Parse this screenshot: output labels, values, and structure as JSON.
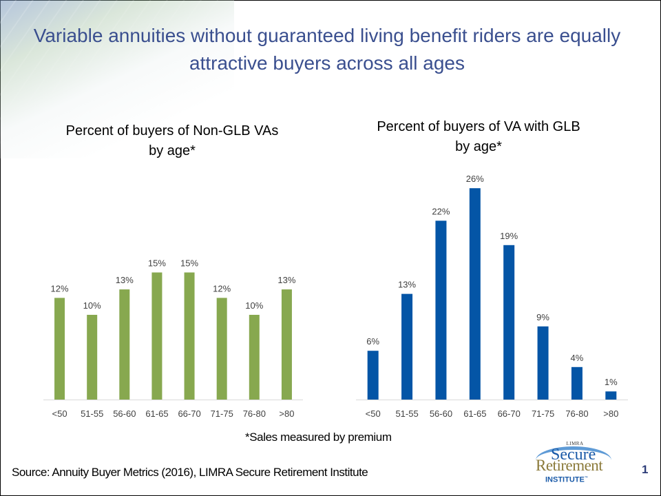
{
  "slide": {
    "title": "Variable annuities without guaranteed living benefit riders are equally attractive buyers across all ages",
    "footnote": "*Sales measured by premium",
    "source": "Source: Annuity Buyer Metrics (2016), LIMRA Secure Retirement Institute",
    "page_number": "1",
    "logo": {
      "top_text": "LIMRA",
      "line1": "Secure",
      "line2": "Retirement",
      "line3": "INSTITUTE",
      "trademark": "™"
    }
  },
  "colors": {
    "title": "#3a4f8f",
    "left_bars": "#87a84f",
    "right_bars": "#0455a6",
    "axis": "#d9d9d9",
    "labels": "#404040"
  },
  "chart_data": [
    {
      "type": "bar",
      "title": "Percent of buyers of Non-GLB VAs by age*",
      "title_lines": [
        "Percent of buyers of Non-GLB VAs",
        "by age*"
      ],
      "categories": [
        "<50",
        "51-55",
        "56-60",
        "61-65",
        "66-70",
        "71-75",
        "76-80",
        ">80"
      ],
      "values": [
        12,
        10,
        13,
        15,
        15,
        12,
        10,
        13
      ],
      "data_labels": [
        "12%",
        "10%",
        "13%",
        "15%",
        "15%",
        "12%",
        "10%",
        "13%"
      ],
      "xlabel": "",
      "ylabel": "",
      "ylim": [
        0,
        15
      ],
      "grid": false,
      "legend": "none"
    },
    {
      "type": "bar",
      "title": "Percent of buyers of VA with GLB by age*",
      "title_lines": [
        "Percent of buyers of VA with GLB",
        "by age*"
      ],
      "categories": [
        "<50",
        "51-55",
        "56-60",
        "61-65",
        "66-70",
        "71-75",
        "76-80",
        ">80"
      ],
      "values": [
        6,
        13,
        22,
        26,
        19,
        9,
        4,
        1
      ],
      "data_labels": [
        "6%",
        "13%",
        "22%",
        "26%",
        "19%",
        "9%",
        "4%",
        "1%"
      ],
      "xlabel": "",
      "ylabel": "",
      "ylim": [
        0,
        26
      ],
      "grid": false,
      "legend": "none"
    }
  ]
}
